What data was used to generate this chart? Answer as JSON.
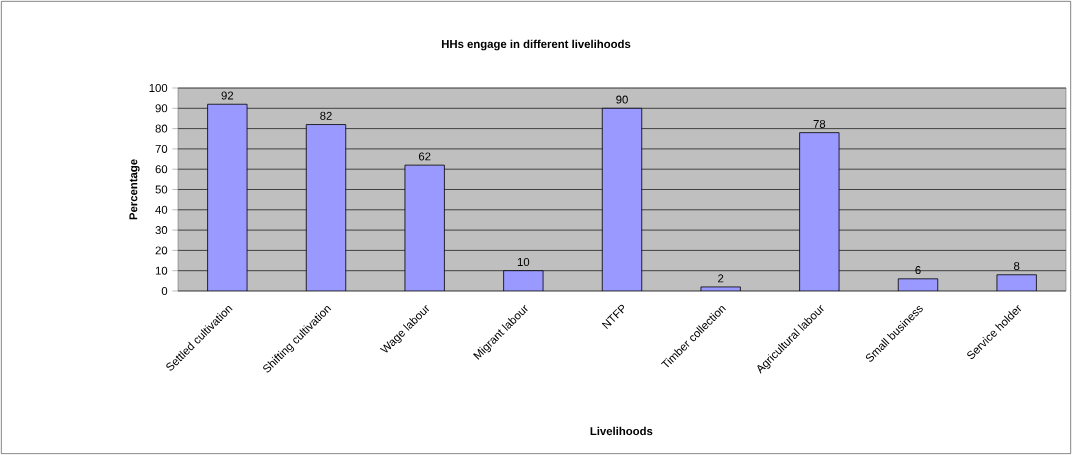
{
  "chart_data": {
    "type": "bar",
    "title": "HHs engage in different livelihoods",
    "xlabel": "Livelihoods",
    "ylabel": "Percentage",
    "categories": [
      "Settled cultivation",
      "Shifting cultivation",
      "Wage labour",
      "Migrant labour",
      "NTFP",
      "Timber collection",
      "Agricultural labour",
      "Small business",
      "Service holder"
    ],
    "values": [
      92,
      82,
      62,
      10,
      90,
      2,
      78,
      6,
      8
    ],
    "color": "#9999ff",
    "ylim": [
      0,
      100
    ],
    "yticks": [
      0,
      10,
      20,
      30,
      40,
      50,
      60,
      70,
      80,
      90,
      100
    ],
    "grid": "y",
    "data_labels": true
  }
}
